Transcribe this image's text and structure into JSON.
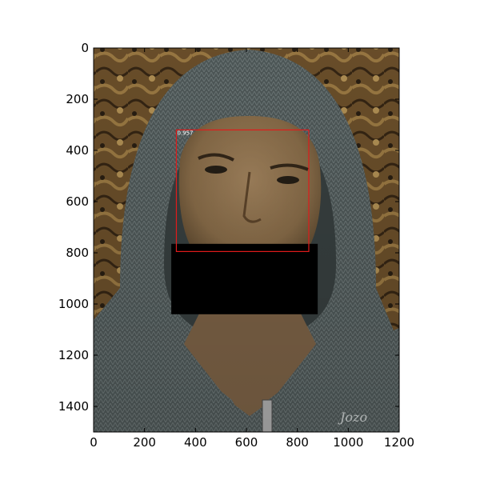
{
  "plot": {
    "x_ticks": [
      0,
      200,
      400,
      600,
      800,
      1000,
      1200
    ],
    "y_ticks": [
      0,
      200,
      400,
      600,
      800,
      1000,
      1200,
      1400
    ],
    "x_range": [
      0,
      1200
    ],
    "y_range": [
      0,
      1500
    ],
    "y_inverted": true
  },
  "photo": {
    "subject": "man in grey knitted hood",
    "colors": {
      "background_bark": "#8a6a3a",
      "hood_knit": "#5d6868",
      "skin": "#a98860"
    }
  },
  "detection": {
    "score_label": "0.957",
    "box_color": "#e01b1b",
    "box_data": {
      "x1": 325,
      "y1": 320,
      "x2": 845,
      "y2": 795
    }
  },
  "redaction": {
    "color": "#000000",
    "box_data": {
      "x1": 305,
      "y1": 765,
      "x2": 880,
      "y2": 1040
    }
  },
  "watermark": {
    "text": "Jozo"
  }
}
